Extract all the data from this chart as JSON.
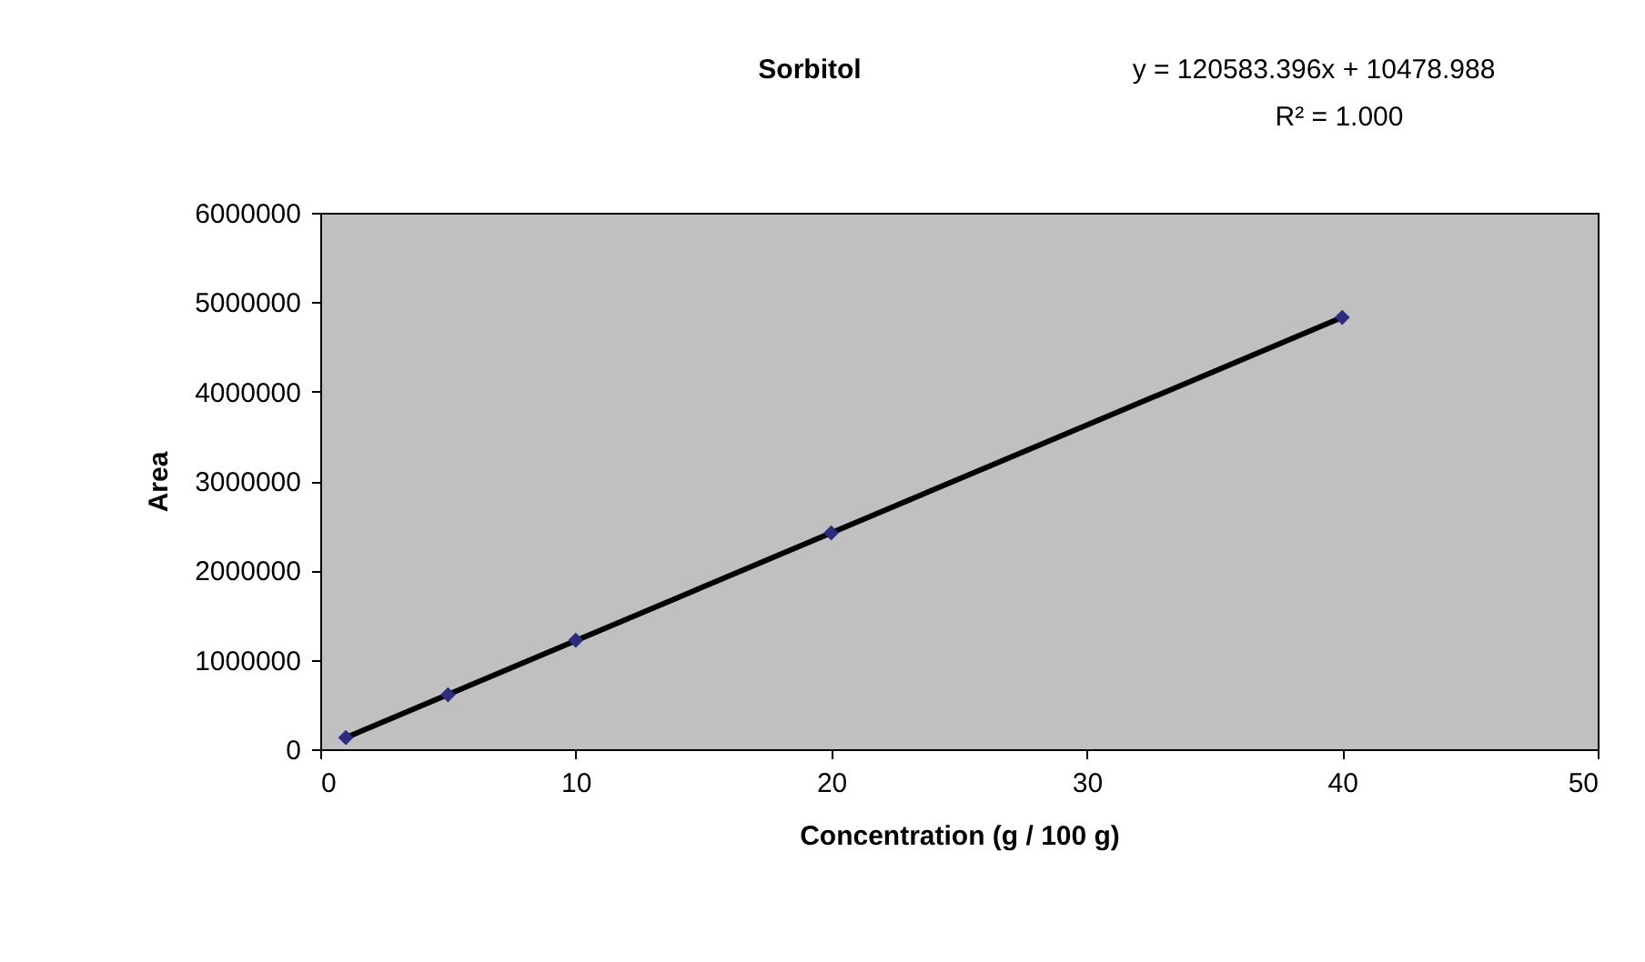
{
  "chart_data": {
    "type": "scatter",
    "title": "Sorbitol",
    "xlabel": "Concentration (g / 100 g)",
    "ylabel": "Area",
    "annotations": [
      "y = 120583.396x + 10478.988",
      "R² = 1.000"
    ],
    "series": [
      {
        "color": "#2b2b80",
        "marker": "diamond",
        "x": [
          1,
          5,
          10,
          20,
          40
        ],
        "values": [
          130000,
          610000,
          1220000,
          2420000,
          4830000
        ]
      },
      {
        "type": "line",
        "color": "#000000",
        "line_style": "solid",
        "x": [
          1,
          40
        ],
        "values": [
          130000,
          4830000
        ]
      }
    ],
    "xlim": [
      0,
      50
    ],
    "xticks": [
      0,
      10,
      20,
      30,
      40,
      50
    ],
    "ylim": [
      0,
      6000000
    ],
    "yticks": [
      0,
      1000000,
      2000000,
      3000000,
      4000000,
      5000000,
      6000000
    ],
    "grid": false
  }
}
